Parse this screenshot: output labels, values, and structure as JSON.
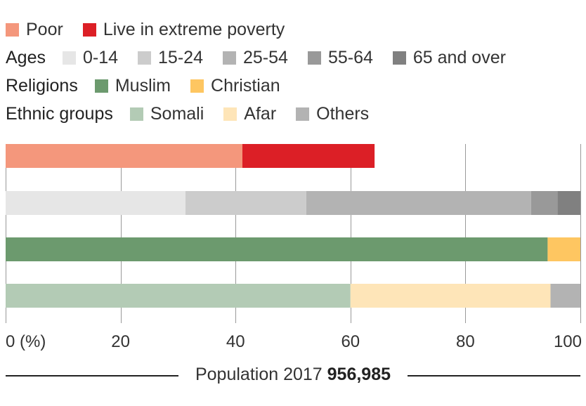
{
  "legend": {
    "row1": [
      {
        "label": "Poor",
        "color": "#f4977c"
      },
      {
        "label": "Live in extreme poverty",
        "color": "#dc1f26"
      }
    ],
    "ages": {
      "title": "Ages",
      "items": [
        {
          "label": "0-14",
          "color": "#e6e6e6"
        },
        {
          "label": "15-24",
          "color": "#cccccc"
        },
        {
          "label": "25-54",
          "color": "#b3b3b3"
        },
        {
          "label": "55-64",
          "color": "#999999"
        },
        {
          "label": "65 and over",
          "color": "#808080"
        }
      ]
    },
    "religions": {
      "title": "Religions",
      "items": [
        {
          "label": "Muslim",
          "color": "#6c9a6e"
        },
        {
          "label": "Christian",
          "color": "#fec661"
        }
      ]
    },
    "ethnic": {
      "title": "Ethnic groups",
      "items": [
        {
          "label": "Somali",
          "color": "#b3cbb5"
        },
        {
          "label": "Afar",
          "color": "#fee5b8"
        },
        {
          "label": "Others",
          "color": "#b3b3b3"
        }
      ]
    }
  },
  "chart_data": {
    "type": "bar",
    "orientation": "horizontal",
    "stacked": true,
    "xlim": [
      0,
      100
    ],
    "xticks": [
      {
        "value": 0,
        "label": "0 (%)"
      },
      {
        "value": 20,
        "label": "20"
      },
      {
        "value": 40,
        "label": "40"
      },
      {
        "value": 60,
        "label": "60"
      },
      {
        "value": 80,
        "label": "80"
      },
      {
        "value": 100,
        "label": "100"
      }
    ],
    "grid": true,
    "rows": [
      {
        "segments": [
          {
            "name": "Poor",
            "value": 41.2,
            "color": "#f4977c"
          },
          {
            "name": "Live in extreme poverty",
            "value": 23.0,
            "color": "#dc1f26"
          }
        ]
      },
      {
        "segments": [
          {
            "name": "0-14",
            "value": 31.3,
            "color": "#e6e6e6"
          },
          {
            "name": "15-24",
            "value": 21.0,
            "color": "#cccccc"
          },
          {
            "name": "25-54",
            "value": 39.1,
            "color": "#b3b3b3"
          },
          {
            "name": "55-64",
            "value": 4.6,
            "color": "#999999"
          },
          {
            "name": "65 and over",
            "value": 4.0,
            "color": "#808080"
          }
        ]
      },
      {
        "segments": [
          {
            "name": "Muslim",
            "value": 94.3,
            "color": "#6c9a6e"
          },
          {
            "name": "Christian",
            "value": 5.7,
            "color": "#fec661"
          }
        ]
      },
      {
        "segments": [
          {
            "name": "Somali",
            "value": 60.0,
            "color": "#b3cbb5"
          },
          {
            "name": "Afar",
            "value": 34.8,
            "color": "#fee5b8"
          },
          {
            "name": "Others",
            "value": 5.2,
            "color": "#b3b3b3"
          }
        ]
      }
    ]
  },
  "footer": {
    "label": "Population 2017",
    "value": "956,985"
  }
}
